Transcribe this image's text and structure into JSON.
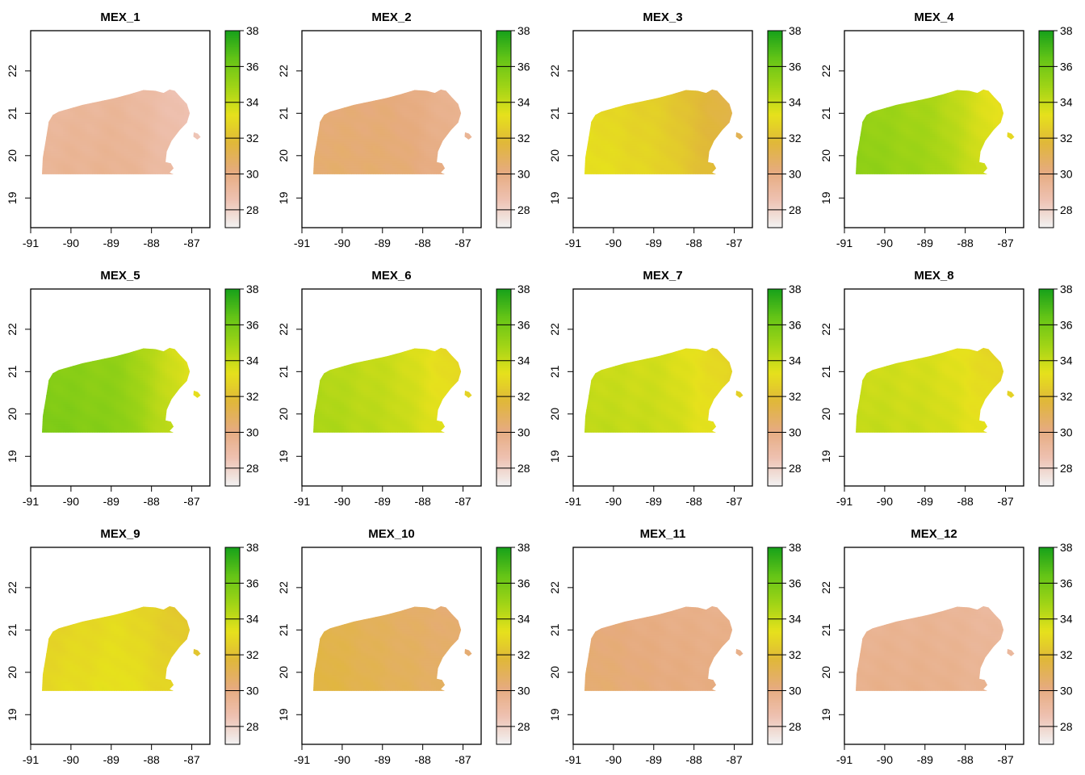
{
  "chart_data": {
    "type": "heatmap",
    "layout": "grid 3x4",
    "grid": false,
    "legend": "right",
    "xlim": [
      -91,
      -86.55
    ],
    "ylim": [
      18.3,
      22.95
    ],
    "x_ticks": [
      -91,
      -90,
      -89,
      -88,
      -87
    ],
    "y_ticks": [
      19,
      20,
      21,
      22
    ],
    "x_tick_labels": [
      "-91",
      "-90",
      "-89",
      "-88",
      "-87"
    ],
    "y_tick_labels": [
      "19",
      "20",
      "21",
      "22"
    ],
    "zlim": [
      27,
      38
    ],
    "legend_ticks": [
      28,
      30,
      32,
      34,
      36,
      38
    ],
    "legend_tick_labels": [
      "28",
      "30",
      "32",
      "34",
      "36",
      "38"
    ],
    "colors": {
      "ramp_low_to_high": [
        "#f2f2f2",
        "#eec1b1",
        "#e6ab7e",
        "#e0b73a",
        "#e6e11c",
        "#a0d416",
        "#64c417",
        "#17a11a"
      ],
      "axis": "#000000",
      "background": "#ffffff"
    },
    "panels": [
      {
        "title": "MEX_1",
        "west": 29.3,
        "center": 29.4,
        "east": 28.4,
        "approx_min": 28,
        "approx_max": 30
      },
      {
        "title": "MEX_2",
        "west": 30.4,
        "center": 30.3,
        "east": 29.4,
        "approx_min": 29,
        "approx_max": 31
      },
      {
        "title": "MEX_3",
        "west": 33.2,
        "center": 32.6,
        "east": 31.0,
        "approx_min": 30,
        "approx_max": 34
      },
      {
        "title": "MEX_4",
        "west": 35.3,
        "center": 34.7,
        "east": 32.8,
        "approx_min": 32,
        "approx_max": 36
      },
      {
        "title": "MEX_5",
        "west": 35.7,
        "center": 35.3,
        "east": 33.0,
        "approx_min": 31,
        "approx_max": 36
      },
      {
        "title": "MEX_6",
        "west": 34.6,
        "center": 34.0,
        "east": 32.7,
        "approx_min": 31,
        "approx_max": 35
      },
      {
        "title": "MEX_7",
        "west": 34.1,
        "center": 33.8,
        "east": 32.6,
        "approx_min": 31,
        "approx_max": 35
      },
      {
        "title": "MEX_8",
        "west": 34.0,
        "center": 33.7,
        "east": 32.7,
        "approx_min": 31,
        "approx_max": 35
      },
      {
        "title": "MEX_9",
        "west": 32.8,
        "center": 33.2,
        "east": 32.2,
        "approx_min": 31,
        "approx_max": 34
      },
      {
        "title": "MEX_10",
        "west": 31.5,
        "center": 30.9,
        "east": 30.4,
        "approx_min": 30,
        "approx_max": 32
      },
      {
        "title": "MEX_11",
        "west": 30.4,
        "center": 30.0,
        "east": 29.8,
        "approx_min": 29,
        "approx_max": 31
      },
      {
        "title": "MEX_12",
        "west": 29.6,
        "center": 29.6,
        "east": 29.2,
        "approx_min": 28,
        "approx_max": 30
      }
    ]
  }
}
